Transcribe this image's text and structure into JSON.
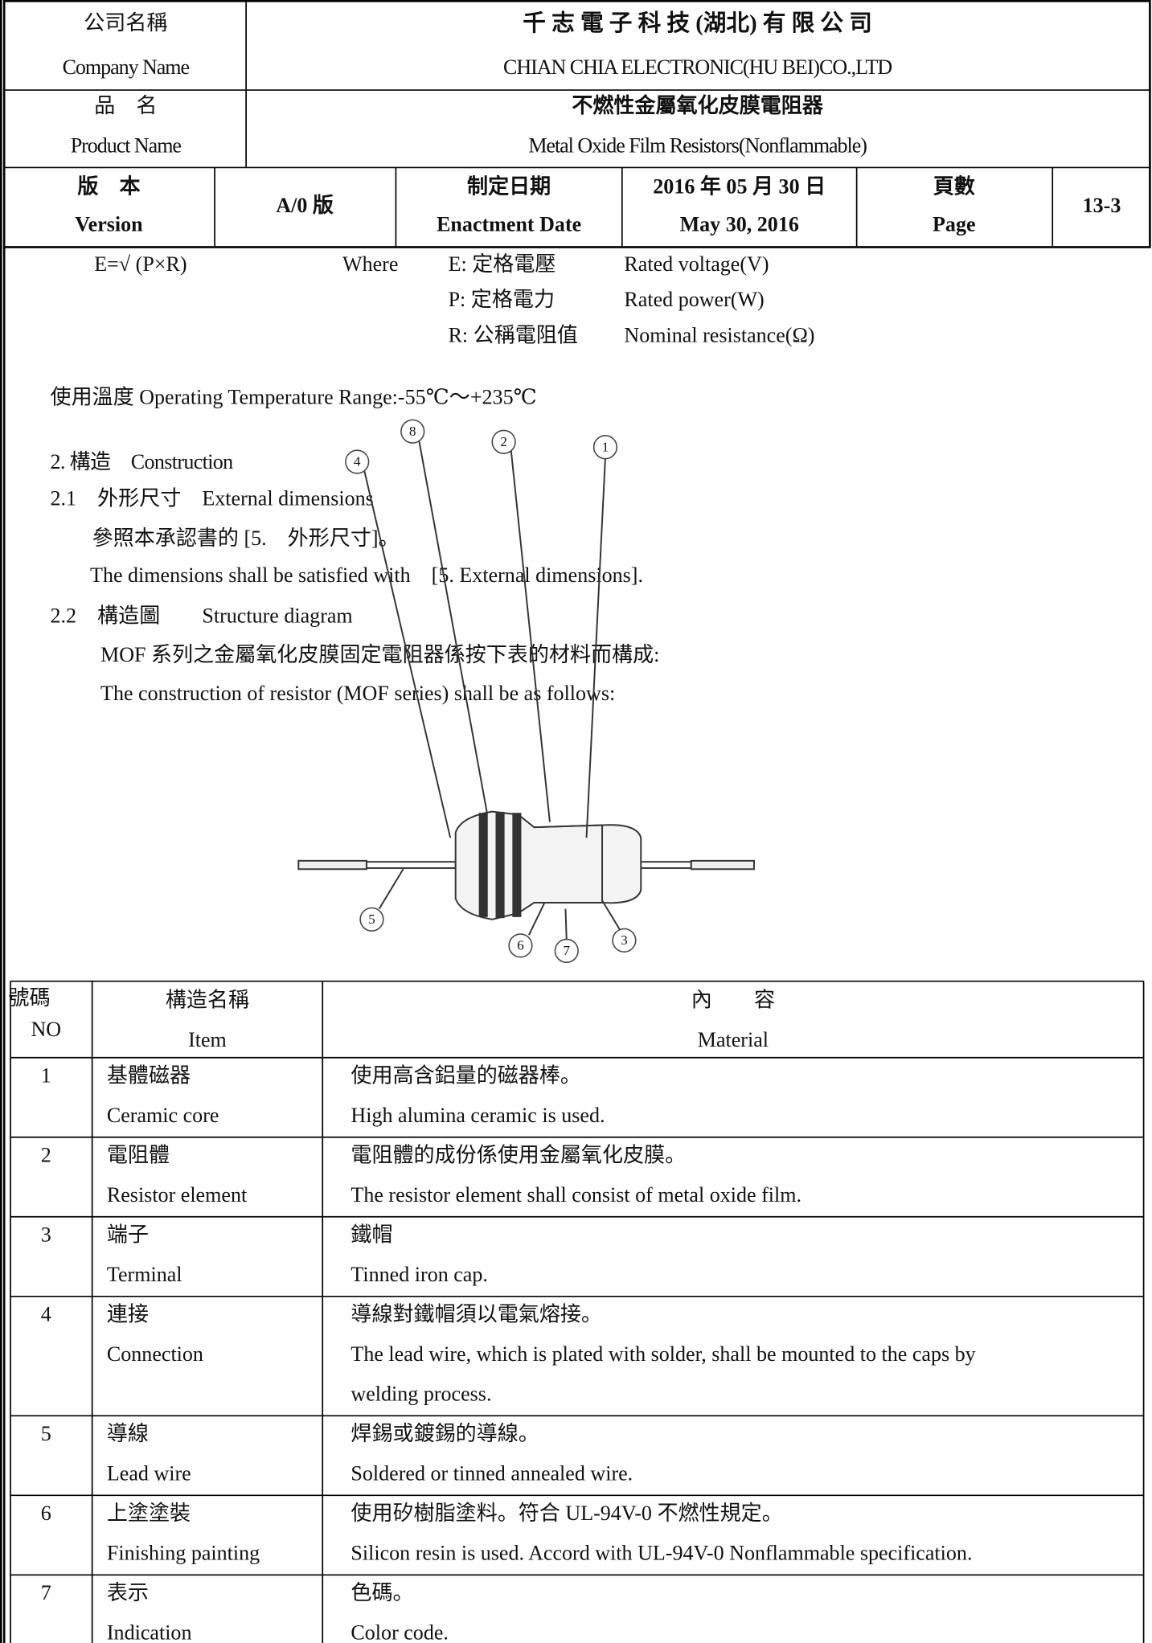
{
  "header": {
    "company_label_zh": "公司名稱",
    "company_label_en": "Company Name",
    "company_zh": "千 志 電 子 科 技 (湖北) 有 限 公 司",
    "company_en": "CHIAN CHIA ELECTRONIC(HU BEI)CO.,LTD",
    "product_label_zh": "品　名",
    "product_label_en": "Product Name",
    "product_zh": "不燃性金屬氧化皮膜電阻器",
    "product_en": "Metal Oxide Film Resistors(Nonflammable)",
    "version_label_zh": "版　本",
    "version_label_en": "Version",
    "version": "A/0 版",
    "date_label_zh": "制定日期",
    "date_label_en": "Enactment Date",
    "date_zh": "2016 年 05 月 30 日",
    "date_en": "May 30, 2016",
    "page_label_zh": "頁數",
    "page_label_en": "Page",
    "page": "13-3"
  },
  "formula": {
    "expression": "E=√ (P×R)",
    "where": "Where",
    "definitions": [
      [
        "E: 定格電壓",
        "Rated voltage(V)"
      ],
      [
        "P: 定格電力",
        "Rated power(W)"
      ],
      [
        "R: 公稱電阻值",
        "Nominal resistance(Ω)"
      ]
    ]
  },
  "temperature": "使用溫度 Operating Temperature Range:-55℃～+235℃",
  "section": {
    "title": "2. 構造　Construction",
    "sub1": {
      "title": "2.1　外形尺寸　External dimensions",
      "lines": [
        "參照本承認書的 [5.　外形尺寸]。",
        "The dimensions shall be satisfied with　[5. External dimensions]."
      ]
    },
    "sub2": {
      "title": "2.2　構造圖　　Structure diagram",
      "lines": [
        "MOF 系列之金屬氧化皮膜固定電阻器係按下表的材料而構成:",
        "The construction of resistor (MOF series) shall be as follows:"
      ]
    }
  },
  "diagram": {
    "callouts": [
      "8",
      "2",
      "1",
      "4",
      "5",
      "6",
      "7",
      "3"
    ]
  },
  "table": {
    "header": {
      "no_zh": "號碼",
      "no_en": "NO",
      "item_zh": "構造名稱",
      "item_en": "Item",
      "material_zh": "內　　容",
      "material_en": "Material"
    },
    "rows": [
      {
        "no": "1",
        "item": [
          "基體磁器",
          "Ceramic core"
        ],
        "material": [
          "使用高含鋁量的磁器棒。",
          "High alumina ceramic is used."
        ]
      },
      {
        "no": "2",
        "item": [
          "電阻體",
          "Resistor element"
        ],
        "material": [
          "電阻體的成份係使用金屬氧化皮膜。",
          "The resistor element shall consist of metal oxide film."
        ]
      },
      {
        "no": "3",
        "item": [
          "端子",
          "Terminal"
        ],
        "material": [
          "鐵帽",
          "Tinned iron cap."
        ]
      },
      {
        "no": "4",
        "item": [
          "連接",
          "Connection"
        ],
        "material": [
          "導線對鐵帽須以電氣熔接。",
          "The lead wire, which is plated with solder, shall be mounted to the caps by",
          "welding process."
        ]
      },
      {
        "no": "5",
        "item": [
          "導線",
          "Lead wire"
        ],
        "material": [
          "焊錫或鍍錫的導線。",
          "Soldered or tinned annealed wire."
        ]
      },
      {
        "no": "6",
        "item": [
          "上塗塗裝",
          "Finishing painting"
        ],
        "material": [
          "使用矽樹脂塗料。符合 UL-94V-0 不燃性規定。",
          "Silicon resin is used. Accord with UL-94V-0 Nonflammable specification."
        ]
      },
      {
        "no": "7",
        "item": [
          "表示",
          "Indication"
        ],
        "material": [
          "色碼。",
          "Color code."
        ]
      }
    ]
  }
}
